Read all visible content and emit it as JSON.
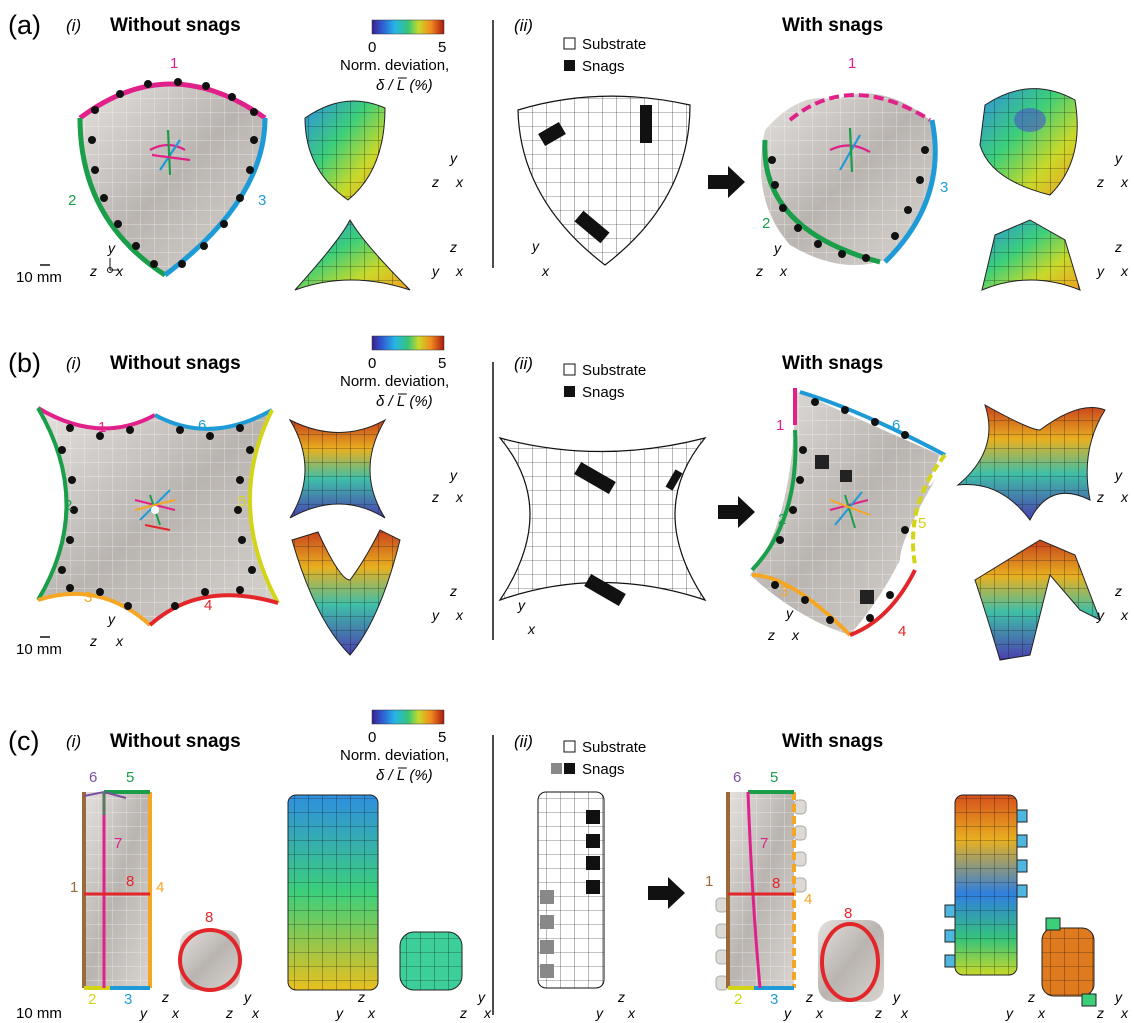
{
  "panels": [
    {
      "id": "a",
      "letter": "(a)",
      "left_roman": "(i)",
      "left_title": "Without snags",
      "right_roman": "(ii)",
      "right_title": "With snags"
    },
    {
      "id": "b",
      "letter": "(b)",
      "left_roman": "(i)",
      "left_title": "Without snags",
      "right_roman": "(ii)",
      "right_title": "With snags"
    },
    {
      "id": "c",
      "letter": "(c)",
      "left_roman": "(i)",
      "left_title": "Without snags",
      "right_roman": "(ii)",
      "right_title": "With snags"
    }
  ],
  "colorbar": {
    "min": "0",
    "max": "5",
    "label": "Norm. deviation,",
    "unit": "δ / L̅  (%)"
  },
  "legend": {
    "substrate": "Substrate",
    "snags": "Snags"
  },
  "scale_bar": "10 mm",
  "axes": {
    "x": "x",
    "y": "y",
    "z": "z"
  },
  "edge_labels_a": [
    "1",
    "2",
    "3"
  ],
  "edge_labels_b": [
    "1",
    "2",
    "3",
    "4",
    "5",
    "6"
  ],
  "edge_labels_c": [
    "1",
    "2",
    "3",
    "4",
    "5",
    "6",
    "7",
    "8"
  ],
  "colors": {
    "magenta": "#e0218a",
    "green": "#1a9e4a",
    "blue": "#1e9bd7",
    "yellow": "#d4d417",
    "orange": "#f5a623",
    "red": "#e3262a",
    "purple": "#7b4fa0",
    "brown": "#9a6a3a",
    "gray_model": "#c9c5c2"
  }
}
